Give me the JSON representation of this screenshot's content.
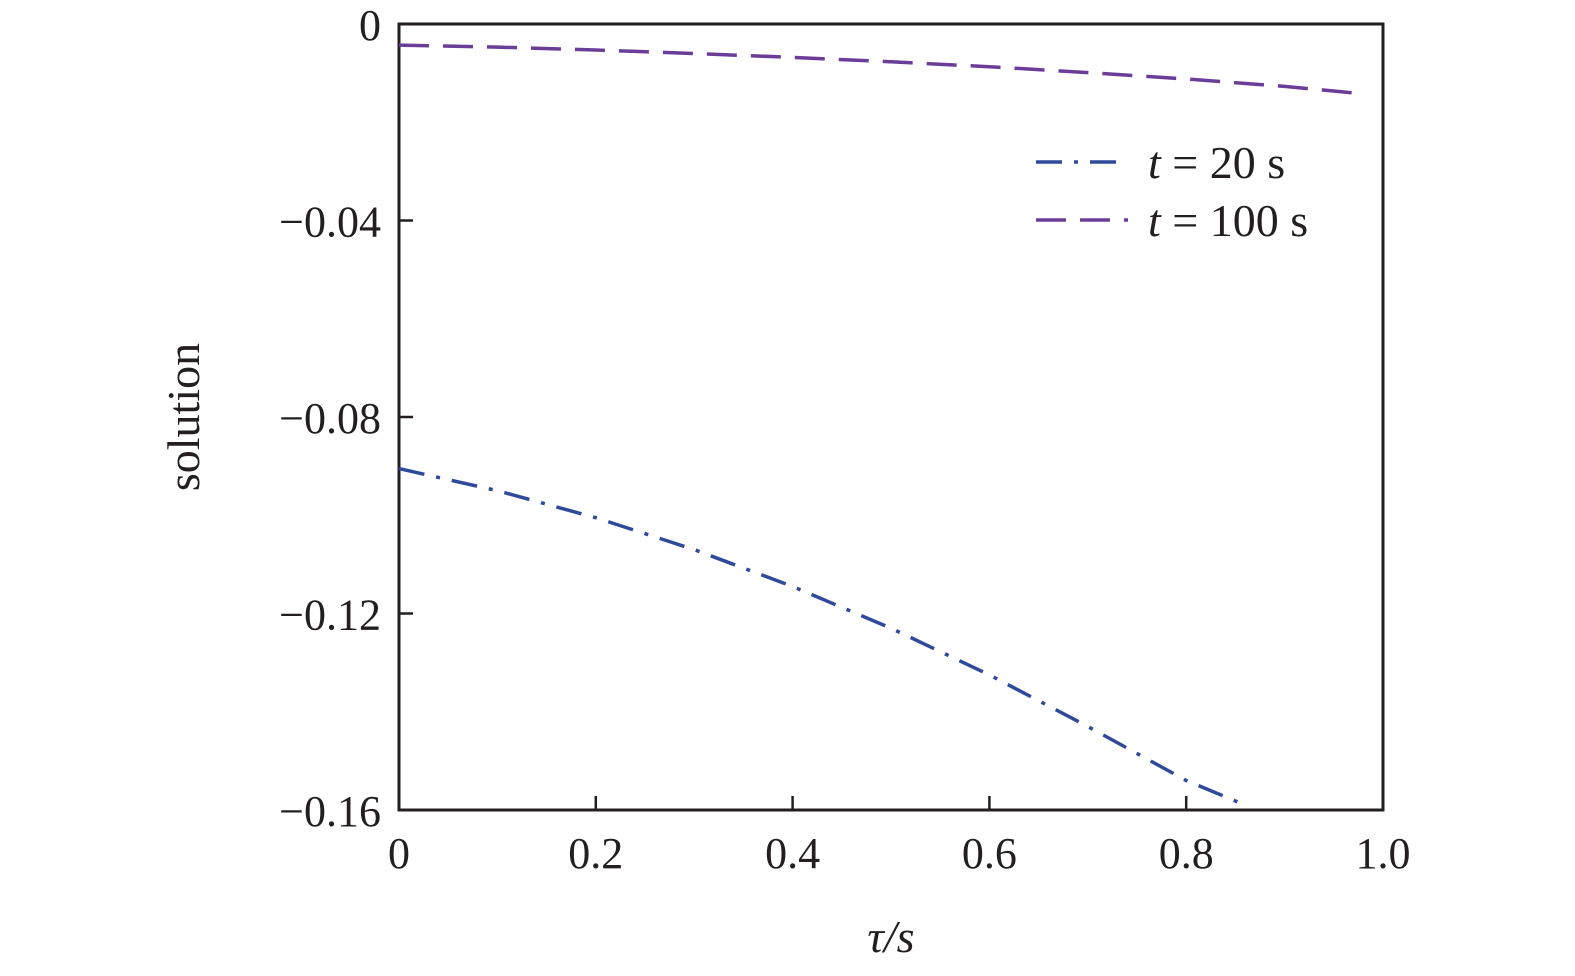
{
  "chart_data": {
    "type": "line",
    "xlabel": "τ/s",
    "ylabel": "solution",
    "xlim": [
      0,
      1.0
    ],
    "ylim": [
      -0.16,
      0
    ],
    "x_ticks": [
      "0",
      "0.2",
      "0.4",
      "0.6",
      "0.8",
      "1.0"
    ],
    "x_tick_values": [
      0,
      0.2,
      0.4,
      0.6,
      0.8,
      1.0
    ],
    "y_ticks": [
      "0",
      "−0.04",
      "−0.08",
      "−0.12",
      "−0.16"
    ],
    "y_tick_values": [
      0,
      -0.04,
      -0.08,
      -0.12,
      -0.16
    ],
    "grid": false,
    "legend_position": "top-right",
    "series": [
      {
        "name": "t = 20 s",
        "legend_var": "t",
        "legend_rest": " = 20 s",
        "color": "#2f4a9a",
        "style": "dashdot",
        "x": [
          0,
          0.1,
          0.2,
          0.3,
          0.4,
          0.5,
          0.6,
          0.7,
          0.8,
          0.86
        ],
        "y": [
          -0.0905,
          -0.095,
          -0.1005,
          -0.107,
          -0.1145,
          -0.123,
          -0.1325,
          -0.143,
          -0.154,
          -0.159
        ]
      },
      {
        "name": "t = 100 s",
        "legend_var": "t",
        "legend_rest": " = 100 s",
        "color": "#6a3e98",
        "style": "dashed",
        "x": [
          0,
          0.1,
          0.2,
          0.3,
          0.4,
          0.5,
          0.6,
          0.7,
          0.8,
          0.9,
          0.98
        ],
        "y": [
          -0.0043,
          -0.0047,
          -0.0053,
          -0.006,
          -0.0068,
          -0.0077,
          -0.0087,
          -0.0099,
          -0.0112,
          -0.0127,
          -0.0142
        ]
      }
    ]
  }
}
